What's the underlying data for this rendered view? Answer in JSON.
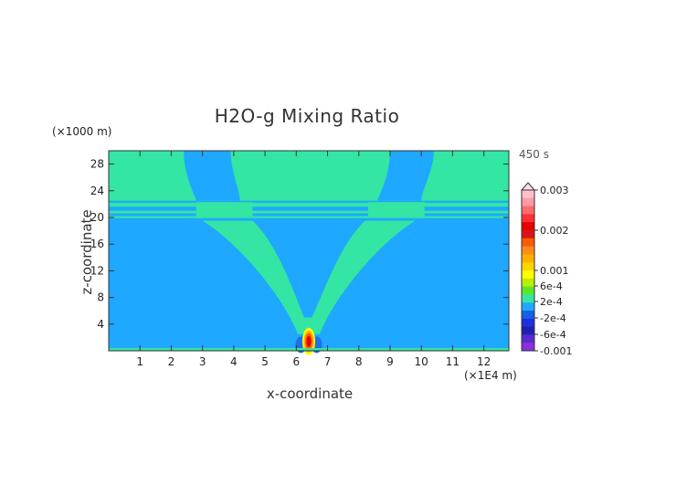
{
  "chart_data": {
    "type": "heatmap",
    "title": "H2O-g Mixing Ratio",
    "xlabel": "x-coordinate",
    "ylabel": "z-coordinate",
    "x_unit": "(×1E4 m)",
    "y_unit": "(×1000 m)",
    "time_label": "450 s",
    "xlim": [
      0,
      12.8
    ],
    "ylim": [
      0,
      30
    ],
    "x_ticks": [
      "1",
      "2",
      "3",
      "4",
      "5",
      "6",
      "7",
      "8",
      "9",
      "10",
      "11",
      "12"
    ],
    "y_ticks": [
      "4",
      "8",
      "12",
      "16",
      "20",
      "24",
      "28"
    ],
    "background_value": "-2e-4 to 2e-4",
    "features": [
      {
        "name": "upper moist layer",
        "value_band": "2e-4 to 6e-4",
        "z_range": [
          22.5,
          30
        ]
      },
      {
        "name": "plume arms",
        "value_band": "2e-4 to 6e-4",
        "z_range": [
          2,
          20
        ]
      },
      {
        "name": "surface source",
        "value_band": "0.001 to 0.003",
        "x": 6.4,
        "z_range": [
          0,
          2
        ]
      }
    ],
    "colorbar": {
      "labels": [
        "0.003",
        "0.002",
        "0.001",
        "6e-4",
        "2e-4",
        "-2e-4",
        "-6e-4",
        "-0.001"
      ],
      "colors": [
        "#ffc0cb",
        "#ff9aa6",
        "#ff6b6b",
        "#ff3030",
        "#e60000",
        "#d81414",
        "#ff5a00",
        "#ff8c1a",
        "#ffb000",
        "#ffd400",
        "#ffff00",
        "#b8f000",
        "#5ae62d",
        "#33e6a3",
        "#1fa8ff",
        "#1460e6",
        "#1e2fe0",
        "#2020b0",
        "#5a2ad0",
        "#8a30e0"
      ]
    }
  }
}
